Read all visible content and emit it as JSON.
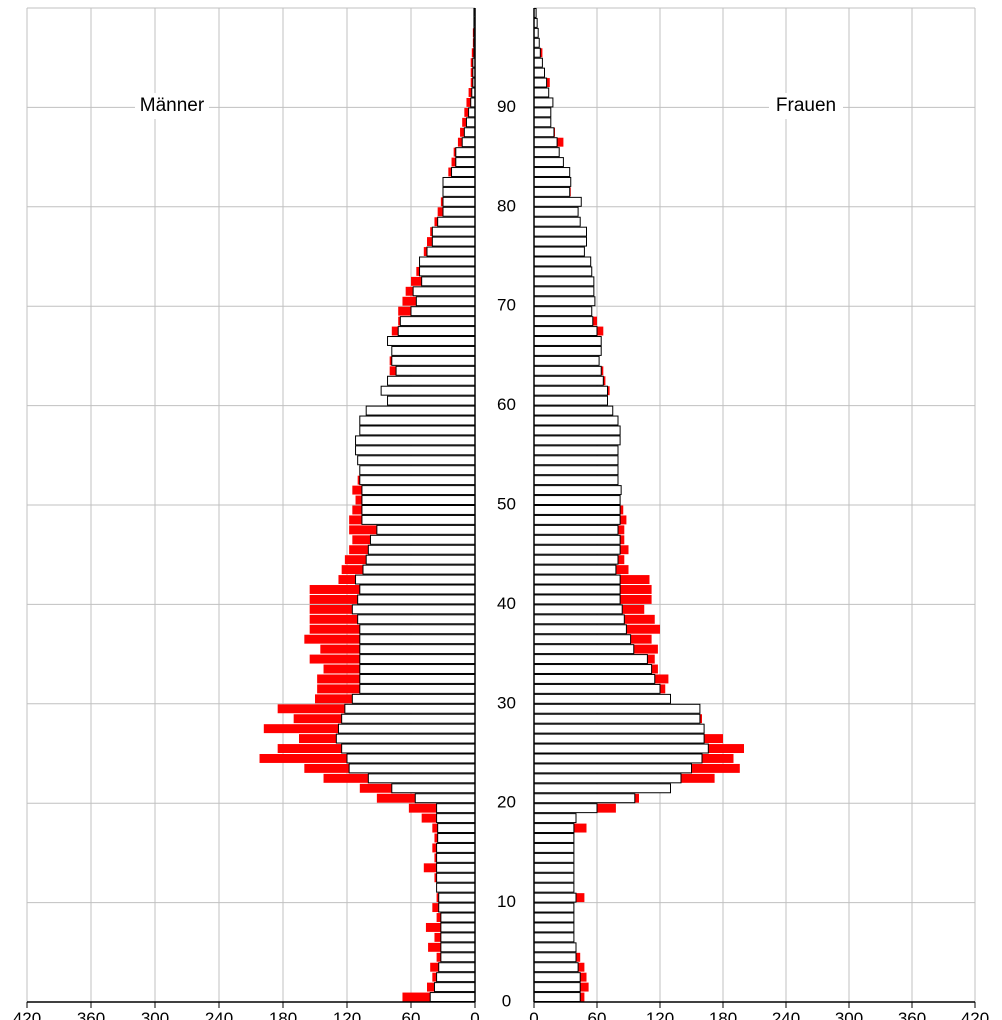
{
  "chart_data": [
    {
      "type": "bar",
      "orientation": "horizontal",
      "title": "Männer",
      "x_direction": "reversed",
      "xlim": [
        0,
        420
      ],
      "x_ticks": [
        420,
        360,
        300,
        240,
        180,
        120,
        60,
        0
      ],
      "ylim": [
        0,
        100
      ],
      "age_ticks": [
        0,
        10,
        20,
        30,
        40,
        50,
        60,
        70,
        80,
        90
      ],
      "grid": true,
      "age": [
        0,
        1,
        2,
        3,
        4,
        5,
        6,
        7,
        8,
        9,
        10,
        11,
        12,
        13,
        14,
        15,
        16,
        17,
        18,
        19,
        20,
        21,
        22,
        23,
        24,
        25,
        26,
        27,
        28,
        29,
        30,
        31,
        32,
        33,
        34,
        35,
        36,
        37,
        38,
        39,
        40,
        41,
        42,
        43,
        44,
        45,
        46,
        47,
        48,
        49,
        50,
        51,
        52,
        53,
        54,
        55,
        56,
        57,
        58,
        59,
        60,
        61,
        62,
        63,
        64,
        65,
        66,
        67,
        68,
        69,
        70,
        71,
        72,
        73,
        74,
        75,
        76,
        77,
        78,
        79,
        80,
        81,
        82,
        83,
        84,
        85,
        86,
        87,
        88,
        89,
        90,
        91,
        92,
        93,
        94,
        95,
        96,
        97,
        98,
        99
      ],
      "series": [
        {
          "color": "#ff0000",
          "values": [
            68,
            45,
            40,
            42,
            36,
            44,
            38,
            46,
            36,
            40,
            36,
            36,
            38,
            48,
            38,
            40,
            38,
            40,
            50,
            62,
            92,
            108,
            142,
            160,
            202,
            185,
            165,
            198,
            170,
            185,
            150,
            148,
            148,
            142,
            155,
            145,
            160,
            155,
            155,
            155,
            155,
            155,
            128,
            125,
            122,
            118,
            115,
            118,
            118,
            115,
            112,
            115,
            110,
            108,
            103,
            100,
            96,
            90,
            88,
            85,
            78,
            75,
            78,
            80,
            80,
            75,
            75,
            78,
            72,
            72,
            68,
            65,
            60,
            55,
            50,
            48,
            45,
            42,
            38,
            35,
            32,
            30,
            28,
            25,
            22,
            20,
            16,
            14,
            12,
            10,
            8,
            6,
            4,
            4,
            4,
            3,
            2,
            2,
            1,
            1
          ]
        },
        {
          "color": "#ffffff",
          "stroke": "#000000",
          "values": [
            42,
            38,
            36,
            34,
            32,
            32,
            32,
            32,
            32,
            34,
            34,
            36,
            36,
            36,
            36,
            36,
            35,
            35,
            36,
            36,
            56,
            78,
            100,
            118,
            120,
            125,
            130,
            128,
            125,
            122,
            115,
            108,
            108,
            108,
            108,
            108,
            108,
            108,
            110,
            115,
            110,
            108,
            112,
            105,
            102,
            100,
            98,
            92,
            106,
            106,
            106,
            106,
            108,
            108,
            110,
            112,
            112,
            108,
            108,
            102,
            82,
            88,
            82,
            74,
            78,
            78,
            82,
            72,
            70,
            60,
            55,
            58,
            50,
            52,
            52,
            45,
            40,
            40,
            35,
            30,
            30,
            30,
            30,
            22,
            18,
            18,
            12,
            10,
            8,
            6,
            4,
            3,
            2,
            2,
            2,
            1,
            1,
            1,
            1,
            1
          ]
        }
      ]
    },
    {
      "type": "bar",
      "orientation": "horizontal",
      "title": "Frauen",
      "xlim": [
        0,
        420
      ],
      "x_ticks": [
        0,
        60,
        120,
        180,
        240,
        300,
        360,
        420
      ],
      "ylim": [
        0,
        100
      ],
      "grid": true,
      "age": [
        0,
        1,
        2,
        3,
        4,
        5,
        6,
        7,
        8,
        9,
        10,
        11,
        12,
        13,
        14,
        15,
        16,
        17,
        18,
        19,
        20,
        21,
        22,
        23,
        24,
        25,
        26,
        27,
        28,
        29,
        30,
        31,
        32,
        33,
        34,
        35,
        36,
        37,
        38,
        39,
        40,
        41,
        42,
        43,
        44,
        45,
        46,
        47,
        48,
        49,
        50,
        51,
        52,
        53,
        54,
        55,
        56,
        57,
        58,
        59,
        60,
        61,
        62,
        63,
        64,
        65,
        66,
        67,
        68,
        69,
        70,
        71,
        72,
        73,
        74,
        75,
        76,
        77,
        78,
        79,
        80,
        81,
        82,
        83,
        84,
        85,
        86,
        87,
        88,
        89,
        90,
        91,
        92,
        93,
        94,
        95,
        96,
        97,
        98,
        99
      ],
      "series": [
        {
          "color": "#ff0000",
          "values": [
            48,
            52,
            50,
            48,
            44,
            36,
            36,
            36,
            38,
            36,
            48,
            36,
            38,
            36,
            36,
            38,
            38,
            50,
            40,
            78,
            100,
            130,
            172,
            196,
            190,
            200,
            180,
            150,
            160,
            145,
            125,
            125,
            128,
            118,
            115,
            118,
            112,
            120,
            115,
            105,
            112,
            112,
            110,
            90,
            86,
            90,
            86,
            86,
            88,
            85,
            82,
            80,
            78,
            78,
            75,
            75,
            78,
            82,
            80,
            75,
            70,
            72,
            68,
            66,
            62,
            64,
            58,
            66,
            60,
            50,
            48,
            45,
            44,
            42,
            32,
            30,
            32,
            20,
            40,
            42,
            45,
            35,
            32,
            30,
            22,
            22,
            28,
            20,
            16,
            16,
            12,
            12,
            15,
            10,
            8,
            8,
            4,
            4,
            3,
            2
          ]
        },
        {
          "color": "#ffffff",
          "stroke": "#000000",
          "values": [
            44,
            44,
            44,
            42,
            40,
            40,
            38,
            38,
            38,
            38,
            40,
            38,
            38,
            38,
            38,
            38,
            38,
            38,
            40,
            60,
            96,
            130,
            140,
            150,
            160,
            166,
            162,
            162,
            158,
            158,
            130,
            120,
            115,
            112,
            108,
            95,
            92,
            88,
            86,
            84,
            82,
            82,
            82,
            78,
            80,
            82,
            82,
            80,
            82,
            82,
            82,
            83,
            80,
            80,
            80,
            80,
            82,
            82,
            80,
            75,
            70,
            70,
            66,
            64,
            62,
            64,
            64,
            60,
            56,
            55,
            58,
            57,
            57,
            55,
            54,
            48,
            50,
            50,
            44,
            42,
            45,
            34,
            35,
            34,
            28,
            24,
            22,
            19,
            16,
            16,
            18,
            14,
            12,
            10,
            8,
            6,
            5,
            4,
            3,
            2
          ]
        }
      ]
    }
  ]
}
